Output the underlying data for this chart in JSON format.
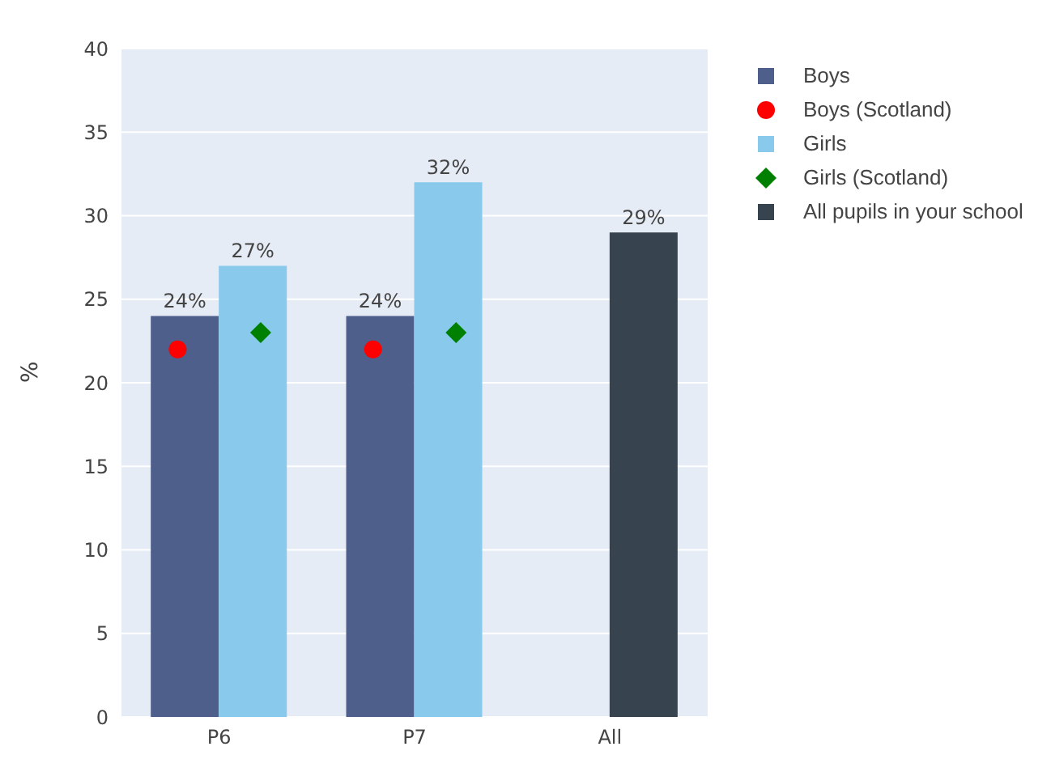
{
  "chart_data": {
    "type": "bar",
    "categories": [
      "P6",
      "P7",
      "All"
    ],
    "ylabel": "%",
    "ylim": [
      0,
      40
    ],
    "yticks": [
      0,
      5,
      10,
      15,
      20,
      25,
      30,
      35,
      40
    ],
    "grid": "y",
    "legend": "top right",
    "series": [
      {
        "name": "Boys",
        "color": "#4d5f8a",
        "values": [
          24,
          24,
          null
        ],
        "value_labels": [
          "24%",
          "24%",
          null
        ]
      },
      {
        "name": "Boys (Scotland)",
        "type": "scatter",
        "marker": "circle",
        "color": "#ff0000",
        "x": [
          "P6",
          "P7"
        ],
        "values": [
          22,
          22
        ]
      },
      {
        "name": "Girls",
        "color": "#88c9ec",
        "values": [
          27,
          32,
          null
        ],
        "value_labels": [
          "27%",
          "32%",
          null
        ]
      },
      {
        "name": "Girls (Scotland)",
        "type": "scatter",
        "marker": "diamond",
        "color": "#008000",
        "x": [
          "P6",
          "P7"
        ],
        "values": [
          23,
          23
        ]
      },
      {
        "name": "All pupils in your school",
        "color": "#37444f",
        "values": [
          null,
          null,
          29
        ],
        "value_labels": [
          null,
          null,
          "29%"
        ]
      }
    ]
  }
}
